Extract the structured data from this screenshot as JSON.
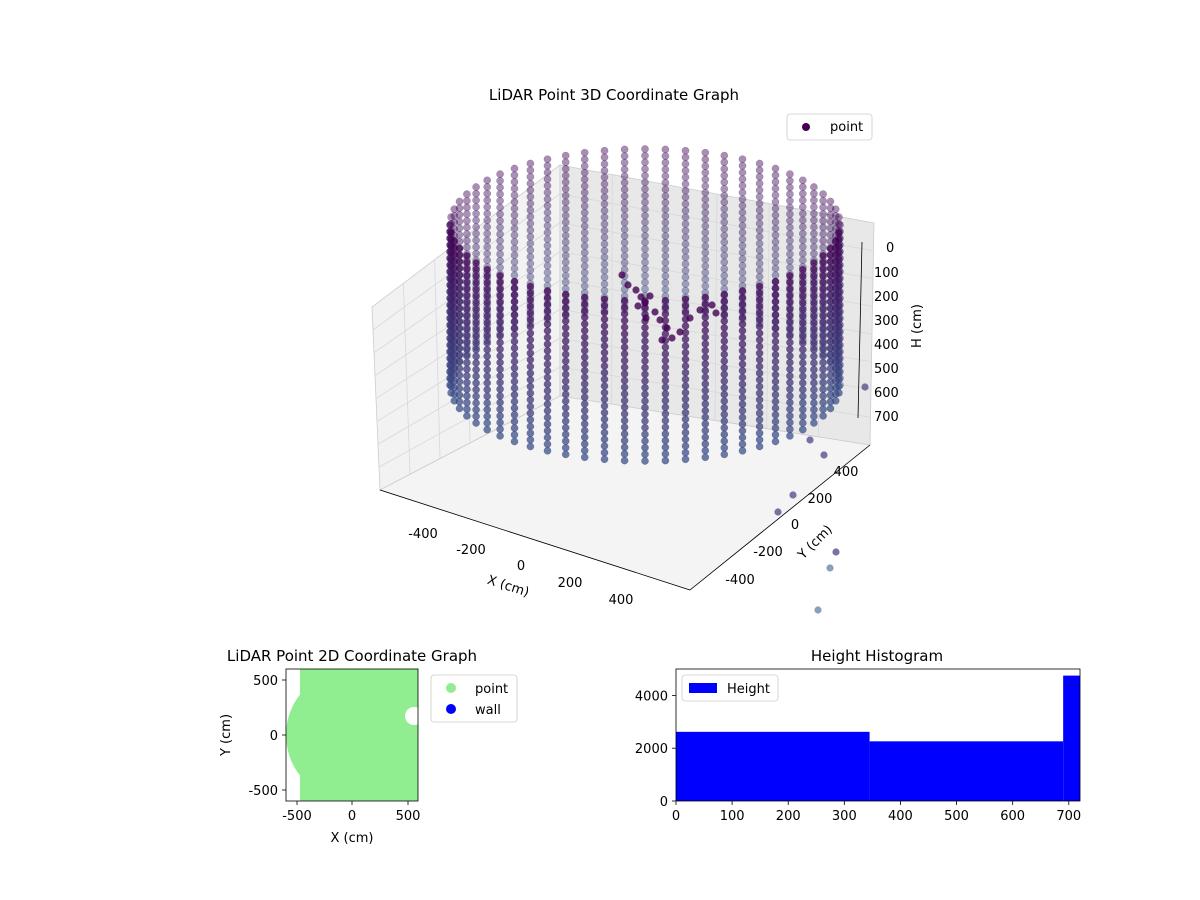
{
  "chart_data": [
    {
      "type": "scatter",
      "title": "LiDAR Point 3D Coordinate Graph",
      "xlabel": "X (cm)",
      "ylabel": "Y (cm)",
      "zlabel": "H (cm)",
      "xlim": [
        -560,
        560
      ],
      "ylim": [
        -560,
        560
      ],
      "zlim": [
        0,
        720
      ],
      "z_inverted": true,
      "xticks": [
        -400,
        -200,
        0,
        200,
        400
      ],
      "yticks": [
        -400,
        -200,
        0,
        200,
        400
      ],
      "zticks": [
        0,
        100,
        200,
        300,
        400,
        500,
        600,
        700
      ],
      "legend": {
        "position": "top-right",
        "entries": [
          "point"
        ]
      },
      "series": [
        {
          "name": "point",
          "color": "#440154",
          "shape": {
            "kind": "cylinder",
            "radius": 560,
            "h_min": 0,
            "h_max": 720,
            "h_step": 30,
            "angle_step_deg": 6
          }
        }
      ]
    },
    {
      "type": "scatter",
      "title": "LiDAR Point 2D Coordinate Graph",
      "xlabel": "X (cm)",
      "ylabel": "Y (cm)",
      "xlim": [
        -590,
        590
      ],
      "ylim": [
        -590,
        590
      ],
      "xticks": [
        -500,
        0,
        500
      ],
      "yticks": [
        -500,
        0,
        500
      ],
      "legend": {
        "position": "outside-right",
        "entries": [
          "point",
          "wall"
        ]
      },
      "series": [
        {
          "name": "point",
          "color": "#90ee90"
        },
        {
          "name": "wall",
          "color": "#0000ff"
        }
      ]
    },
    {
      "type": "bar",
      "title": "Height Histogram",
      "xlim": [
        0,
        720
      ],
      "ylim": [
        0,
        5000
      ],
      "xticks": [
        0,
        100,
        200,
        300,
        400,
        500,
        600,
        700
      ],
      "yticks": [
        0,
        2000,
        4000
      ],
      "legend": {
        "position": "top-left",
        "entries": [
          "Height"
        ]
      },
      "bins": [
        {
          "x0": 0,
          "x1": 345,
          "value": 2620
        },
        {
          "x0": 345,
          "x1": 690,
          "value": 2260
        },
        {
          "x0": 690,
          "x1": 720,
          "value": 4750
        }
      ],
      "series": [
        {
          "name": "Height",
          "color": "#0000ff"
        }
      ]
    }
  ]
}
